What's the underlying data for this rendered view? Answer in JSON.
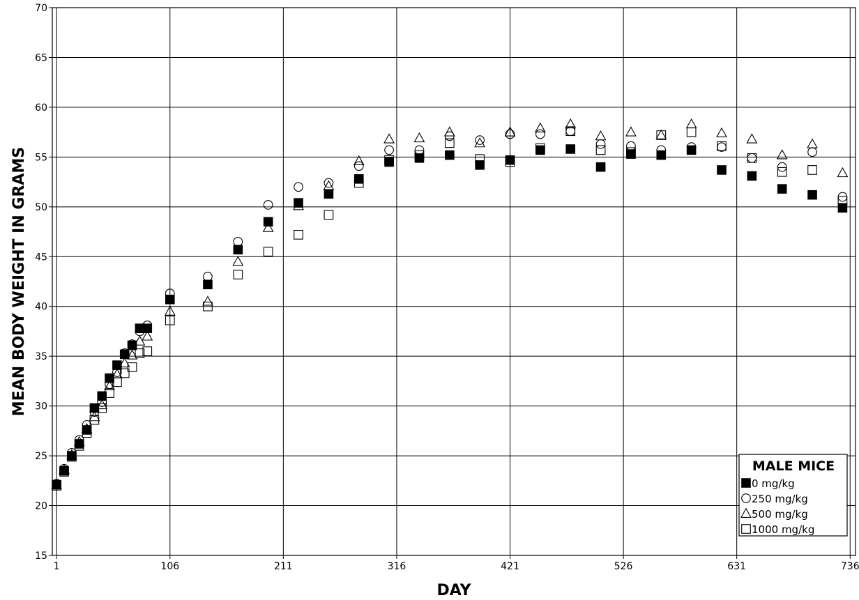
{
  "chart_data": {
    "type": "scatter",
    "title": "",
    "xlabel": "DAY",
    "ylabel": "MEAN BODY WEIGHT IN GRAMS",
    "xlim": [
      -3,
      741
    ],
    "ylim": [
      15,
      70
    ],
    "xticks": [
      1,
      106,
      211,
      316,
      421,
      526,
      631,
      736
    ],
    "yticks": [
      15,
      20,
      25,
      30,
      35,
      40,
      45,
      50,
      55,
      60,
      65,
      70
    ],
    "grid": true,
    "legend": {
      "title": "MALE MICE",
      "placement": "bottom-right"
    },
    "series": [
      {
        "name": "0 mg/kg",
        "marker": "filled-square",
        "x": [
          1,
          8,
          15,
          22,
          29,
          36,
          43,
          50,
          57,
          64,
          71,
          78,
          85,
          106,
          141,
          169,
          197,
          225,
          253,
          281,
          309,
          337,
          365,
          393,
          421,
          449,
          477,
          505,
          533,
          561,
          589,
          617,
          645,
          673,
          701,
          729
        ],
        "y": [
          22.1,
          23.5,
          25.0,
          26.2,
          27.6,
          29.8,
          31.0,
          32.8,
          34.1,
          35.2,
          36.1,
          37.8,
          37.8,
          40.7,
          42.2,
          45.7,
          48.5,
          50.4,
          51.3,
          52.8,
          54.5,
          54.9,
          55.2,
          54.2,
          54.7,
          55.7,
          55.8,
          54.0,
          55.3,
          55.2,
          55.7,
          53.7,
          53.1,
          51.8,
          51.2,
          49.9
        ]
      },
      {
        "name": "250 mg/kg",
        "marker": "open-circle",
        "x": [
          1,
          8,
          15,
          22,
          29,
          36,
          43,
          50,
          57,
          64,
          71,
          78,
          85,
          106,
          141,
          169,
          197,
          225,
          253,
          281,
          309,
          337,
          365,
          393,
          421,
          449,
          477,
          505,
          533,
          561,
          589,
          617,
          645,
          673,
          701,
          729
        ],
        "y": [
          22.2,
          23.7,
          25.3,
          26.6,
          28.1,
          29.4,
          30.4,
          32.2,
          33.4,
          35.3,
          36.2,
          37.5,
          38.1,
          41.3,
          43.0,
          46.5,
          50.2,
          52.0,
          52.4,
          54.1,
          55.7,
          55.7,
          57.1,
          56.7,
          57.3,
          57.3,
          57.6,
          56.3,
          56.1,
          55.7,
          56.0,
          56.0,
          54.9,
          54.0,
          55.5,
          51.0
        ]
      },
      {
        "name": "500 mg/kg",
        "marker": "open-triangle",
        "x": [
          1,
          8,
          15,
          22,
          29,
          36,
          43,
          50,
          57,
          64,
          71,
          78,
          85,
          106,
          141,
          169,
          197,
          225,
          253,
          281,
          309,
          337,
          365,
          393,
          421,
          449,
          477,
          505,
          533,
          561,
          589,
          617,
          645,
          673,
          701,
          729
        ],
        "y": [
          22.1,
          23.6,
          25.1,
          26.4,
          27.7,
          28.9,
          30.1,
          32.0,
          33.2,
          34.3,
          35.1,
          36.5,
          37.0,
          39.5,
          40.5,
          44.5,
          47.9,
          50.1,
          52.1,
          54.6,
          56.8,
          56.9,
          57.5,
          56.4,
          57.5,
          57.9,
          58.3,
          57.1,
          57.5,
          57.2,
          58.3,
          57.4,
          56.8,
          55.2,
          56.3,
          53.4
        ]
      },
      {
        "name": "1000 mg/kg",
        "marker": "open-square",
        "x": [
          1,
          8,
          15,
          22,
          29,
          36,
          43,
          50,
          57,
          64,
          71,
          78,
          85,
          106,
          141,
          169,
          197,
          225,
          253,
          281,
          309,
          337,
          365,
          393,
          421,
          449,
          477,
          505,
          533,
          561,
          589,
          617,
          645,
          673,
          701,
          729
        ],
        "y": [
          22.0,
          23.4,
          24.9,
          26.0,
          27.3,
          28.6,
          29.8,
          31.3,
          32.4,
          33.3,
          33.9,
          35.3,
          35.5,
          38.6,
          40.0,
          43.2,
          45.5,
          47.2,
          49.2,
          52.4,
          54.7,
          55.2,
          56.4,
          54.8,
          54.5,
          55.9,
          57.6,
          55.7,
          55.5,
          57.2,
          57.5,
          56.1,
          54.9,
          53.5,
          53.7,
          50.6
        ]
      }
    ]
  }
}
